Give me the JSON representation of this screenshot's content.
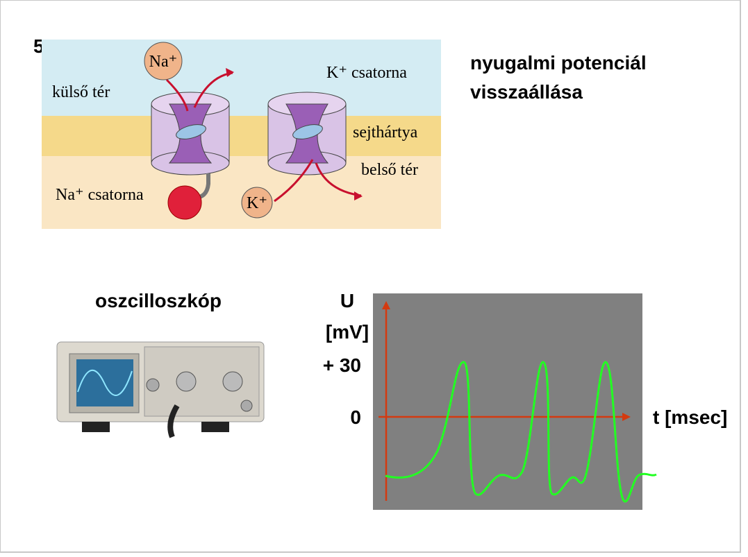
{
  "slide_number": "5.",
  "title_lines": [
    "nyugalmi potenciál",
    "visszaállása"
  ],
  "membrane": {
    "outer_space": "külső tér",
    "inner_space": "belső tér",
    "membrane": "sejthártya",
    "na_ion": "Na⁺",
    "k_ion": "K⁺",
    "na_channel": "Na⁺ csatorna",
    "k_channel": "K⁺ csatorna"
  },
  "oscilloscope_label": "oszcilloszkóp",
  "graph": {
    "y_label_lines": [
      "U",
      "[mV]"
    ],
    "tick_labels": [
      "+ 30",
      "0"
    ],
    "x_label": "t [msec]"
  }
}
